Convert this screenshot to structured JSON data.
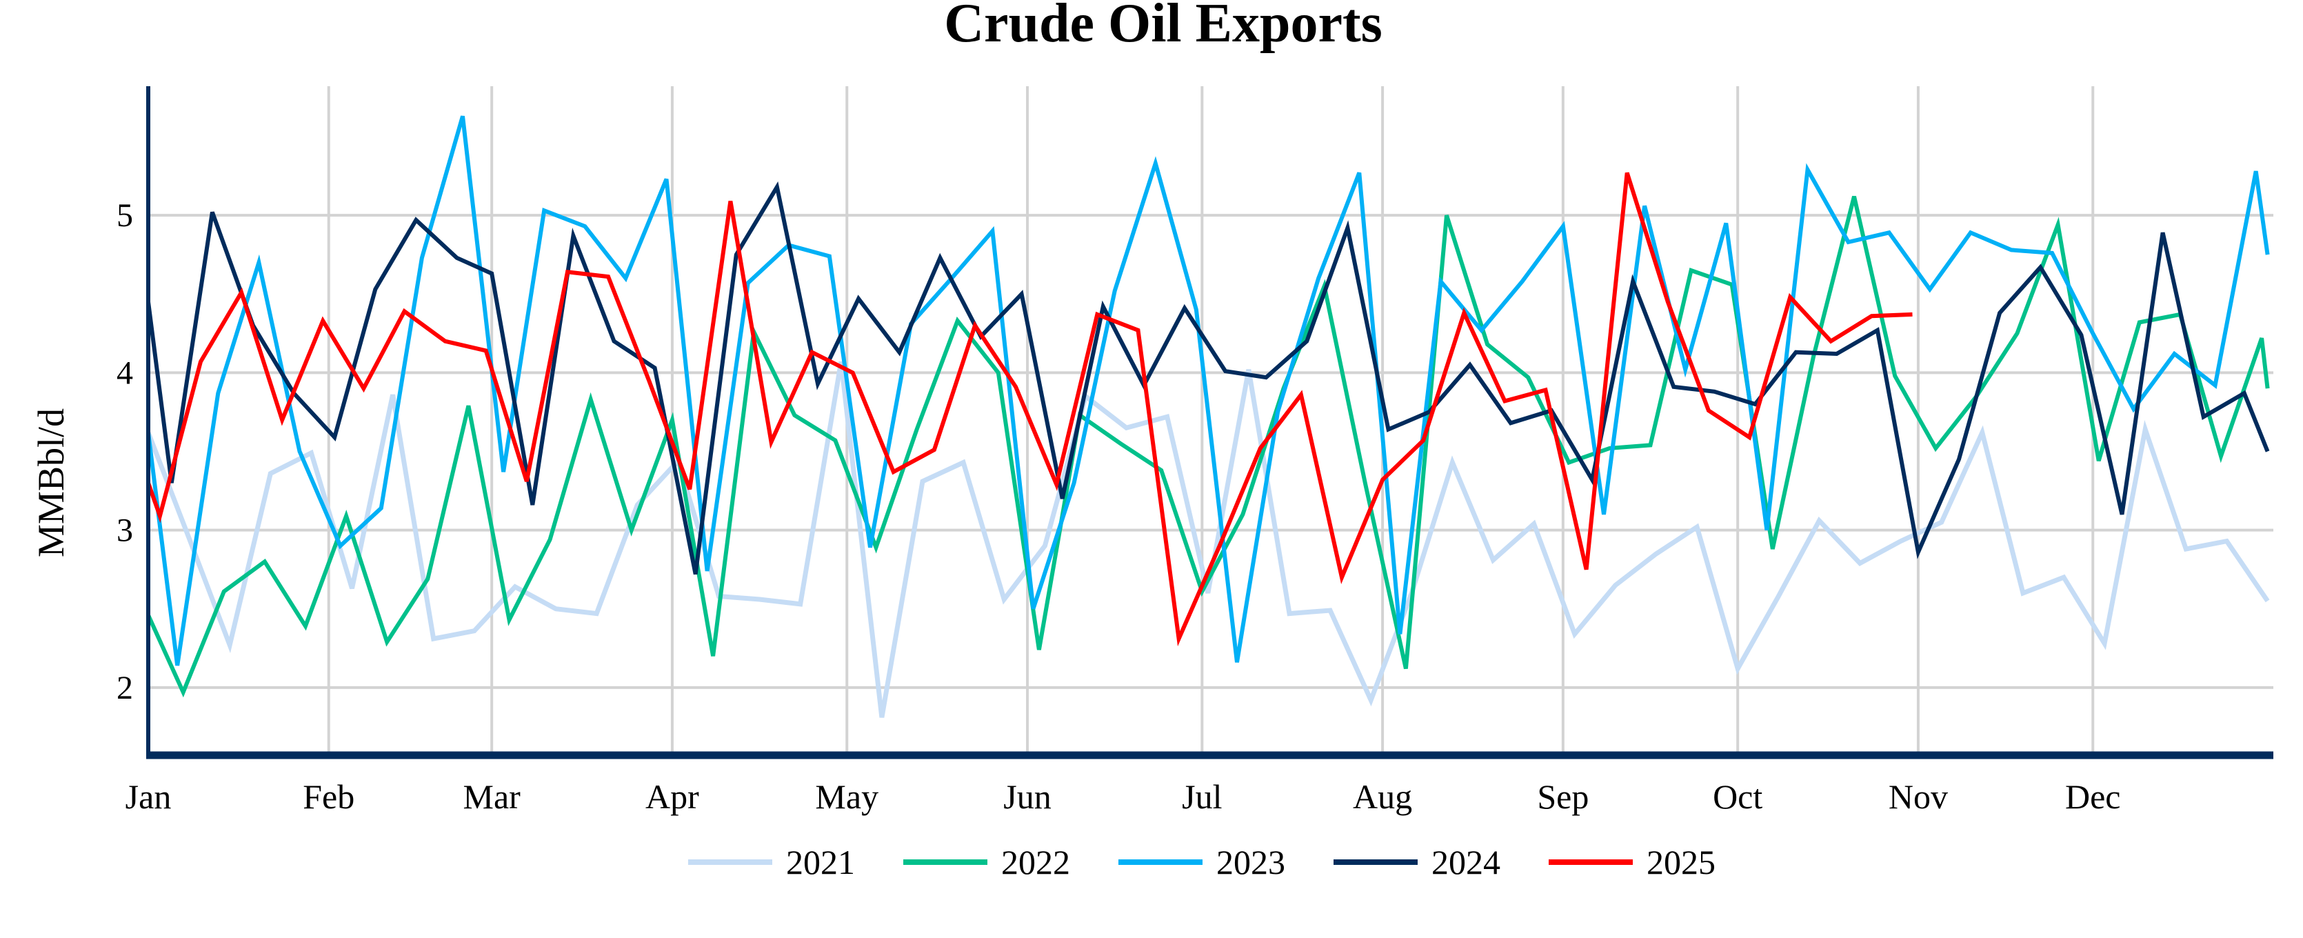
{
  "chart_data": {
    "type": "line",
    "title": "Crude Oil Exports",
    "xlabel": "",
    "ylabel": "MMBbl/d",
    "ylim": [
      1.57,
      5.82
    ],
    "yticks": [
      2,
      3,
      4,
      5
    ],
    "xticks": [
      "Jan",
      "Feb",
      "Mar",
      "Apr",
      "May",
      "Jun",
      "Jul",
      "Aug",
      "Sep",
      "Oct",
      "Nov",
      "Dec"
    ],
    "grid": true,
    "legend_position": "bottom",
    "series": [
      {
        "name": "2021",
        "color": "#c5dcf5",
        "points": [
          [
            "01-01",
            3.62
          ],
          [
            "01-08",
            2.95
          ],
          [
            "01-15",
            2.27
          ],
          [
            "01-22",
            3.36
          ],
          [
            "01-29",
            3.49
          ],
          [
            "02-05",
            2.63
          ],
          [
            "02-12",
            3.86
          ],
          [
            "02-19",
            2.31
          ],
          [
            "02-26",
            2.36
          ],
          [
            "03-05",
            2.64
          ],
          [
            "03-12",
            2.5
          ],
          [
            "03-19",
            2.47
          ],
          [
            "03-26",
            3.16
          ],
          [
            "04-02",
            3.44
          ],
          [
            "04-09",
            2.58
          ],
          [
            "04-16",
            2.56
          ],
          [
            "04-23",
            2.53
          ],
          [
            "04-30",
            4.07
          ],
          [
            "05-07",
            1.81
          ],
          [
            "05-14",
            3.31
          ],
          [
            "05-21",
            3.43
          ],
          [
            "05-28",
            2.56
          ],
          [
            "06-04",
            2.9
          ],
          [
            "06-11",
            3.85
          ],
          [
            "06-18",
            3.65
          ],
          [
            "06-25",
            3.72
          ],
          [
            "07-02",
            2.6
          ],
          [
            "07-09",
            4.02
          ],
          [
            "07-16",
            2.47
          ],
          [
            "07-23",
            2.49
          ],
          [
            "07-30",
            1.92
          ],
          [
            "08-06",
            2.6
          ],
          [
            "08-13",
            3.43
          ],
          [
            "08-20",
            2.81
          ],
          [
            "08-27",
            3.04
          ],
          [
            "09-03",
            2.34
          ],
          [
            "09-10",
            2.65
          ],
          [
            "09-17",
            2.85
          ],
          [
            "09-24",
            3.02
          ],
          [
            "10-01",
            2.12
          ],
          [
            "10-08",
            2.58
          ],
          [
            "10-15",
            3.06
          ],
          [
            "10-22",
            2.79
          ],
          [
            "10-29",
            2.93
          ],
          [
            "11-05",
            3.05
          ],
          [
            "11-12",
            3.62
          ],
          [
            "11-19",
            2.6
          ],
          [
            "11-26",
            2.7
          ],
          [
            "12-03",
            2.28
          ],
          [
            "12-10",
            3.64
          ],
          [
            "12-17",
            2.88
          ],
          [
            "12-24",
            2.93
          ],
          [
            "12-31",
            2.55
          ]
        ]
      },
      {
        "name": "2022",
        "color": "#00c08b",
        "points": [
          [
            "01-01",
            2.46
          ],
          [
            "01-07",
            1.97
          ],
          [
            "01-14",
            2.61
          ],
          [
            "01-21",
            2.8
          ],
          [
            "01-28",
            2.39
          ],
          [
            "02-04",
            3.09
          ],
          [
            "02-11",
            2.29
          ],
          [
            "02-18",
            2.69
          ],
          [
            "02-25",
            3.79
          ],
          [
            "03-04",
            2.43
          ],
          [
            "03-11",
            2.94
          ],
          [
            "03-18",
            3.83
          ],
          [
            "03-25",
            3.0
          ],
          [
            "04-01",
            3.7
          ],
          [
            "04-08",
            2.2
          ],
          [
            "04-15",
            4.26
          ],
          [
            "04-22",
            3.73
          ],
          [
            "04-29",
            3.57
          ],
          [
            "05-06",
            2.89
          ],
          [
            "05-13",
            3.64
          ],
          [
            "05-20",
            4.33
          ],
          [
            "05-27",
            4.0
          ],
          [
            "06-03",
            2.24
          ],
          [
            "06-10",
            3.73
          ],
          [
            "06-17",
            3.55
          ],
          [
            "06-24",
            3.38
          ],
          [
            "07-01",
            2.61
          ],
          [
            "07-08",
            3.1
          ],
          [
            "07-15",
            3.9
          ],
          [
            "07-22",
            4.55
          ],
          [
            "07-29",
            3.3
          ],
          [
            "08-05",
            2.12
          ],
          [
            "08-12",
            5.0
          ],
          [
            "08-19",
            4.18
          ],
          [
            "08-26",
            3.97
          ],
          [
            "09-02",
            3.43
          ],
          [
            "09-09",
            3.52
          ],
          [
            "09-16",
            3.54
          ],
          [
            "09-23",
            4.65
          ],
          [
            "09-30",
            4.56
          ],
          [
            "10-07",
            2.88
          ],
          [
            "10-14",
            4.1
          ],
          [
            "10-21",
            5.12
          ],
          [
            "10-28",
            3.98
          ],
          [
            "11-04",
            3.52
          ],
          [
            "11-11",
            3.85
          ],
          [
            "11-18",
            4.25
          ],
          [
            "11-25",
            4.94
          ],
          [
            "12-02",
            3.44
          ],
          [
            "12-09",
            4.32
          ],
          [
            "12-16",
            4.37
          ],
          [
            "12-23",
            3.47
          ],
          [
            "12-30",
            4.22
          ],
          [
            "12-31",
            3.9
          ]
        ]
      },
      {
        "name": "2023",
        "color": "#00b0f6",
        "points": [
          [
            "01-01",
            3.62
          ],
          [
            "01-06",
            2.14
          ],
          [
            "01-13",
            3.87
          ],
          [
            "01-20",
            4.7
          ],
          [
            "01-27",
            3.5
          ],
          [
            "02-03",
            2.9
          ],
          [
            "02-10",
            3.14
          ],
          [
            "02-17",
            4.73
          ],
          [
            "02-24",
            5.63
          ],
          [
            "03-03",
            3.37
          ],
          [
            "03-10",
            5.03
          ],
          [
            "03-17",
            4.93
          ],
          [
            "03-24",
            4.6
          ],
          [
            "03-31",
            5.23
          ],
          [
            "04-07",
            2.74
          ],
          [
            "04-14",
            4.57
          ],
          [
            "04-21",
            4.81
          ],
          [
            "04-28",
            4.74
          ],
          [
            "05-05",
            2.89
          ],
          [
            "05-12",
            4.31
          ],
          [
            "05-19",
            4.6
          ],
          [
            "05-26",
            4.9
          ],
          [
            "06-02",
            2.5
          ],
          [
            "06-09",
            3.3
          ],
          [
            "06-16",
            4.52
          ],
          [
            "06-23",
            5.33
          ],
          [
            "06-30",
            4.4
          ],
          [
            "07-07",
            2.16
          ],
          [
            "07-14",
            3.75
          ],
          [
            "07-21",
            4.6
          ],
          [
            "07-28",
            5.27
          ],
          [
            "08-04",
            2.34
          ],
          [
            "08-11",
            4.58
          ],
          [
            "08-18",
            4.27
          ],
          [
            "08-25",
            4.58
          ],
          [
            "09-01",
            4.93
          ],
          [
            "09-08",
            3.1
          ],
          [
            "09-15",
            5.06
          ],
          [
            "09-22",
            4.02
          ],
          [
            "09-29",
            4.95
          ],
          [
            "10-06",
            3.0
          ],
          [
            "10-13",
            5.29
          ],
          [
            "10-20",
            4.83
          ],
          [
            "10-27",
            4.89
          ],
          [
            "11-03",
            4.53
          ],
          [
            "11-10",
            4.89
          ],
          [
            "11-17",
            4.78
          ],
          [
            "11-24",
            4.76
          ],
          [
            "12-01",
            4.25
          ],
          [
            "12-08",
            3.77
          ],
          [
            "12-15",
            4.12
          ],
          [
            "12-22",
            3.92
          ],
          [
            "12-29",
            5.28
          ],
          [
            "12-31",
            4.75
          ]
        ]
      },
      {
        "name": "2024",
        "color": "#002b5c",
        "points": [
          [
            "01-01",
            4.45
          ],
          [
            "01-05",
            3.3
          ],
          [
            "01-12",
            5.02
          ],
          [
            "01-19",
            4.3
          ],
          [
            "01-26",
            3.87
          ],
          [
            "02-02",
            3.59
          ],
          [
            "02-09",
            4.53
          ],
          [
            "02-16",
            4.97
          ],
          [
            "02-23",
            4.73
          ],
          [
            "03-01",
            4.63
          ],
          [
            "03-08",
            3.16
          ],
          [
            "03-15",
            4.87
          ],
          [
            "03-22",
            4.2
          ],
          [
            "03-29",
            4.03
          ],
          [
            "04-05",
            2.72
          ],
          [
            "04-12",
            4.75
          ],
          [
            "04-19",
            5.18
          ],
          [
            "04-26",
            3.93
          ],
          [
            "05-03",
            4.47
          ],
          [
            "05-10",
            4.13
          ],
          [
            "05-17",
            4.73
          ],
          [
            "05-24",
            4.23
          ],
          [
            "05-31",
            4.5
          ],
          [
            "06-07",
            3.2
          ],
          [
            "06-14",
            4.42
          ],
          [
            "06-21",
            3.92
          ],
          [
            "06-28",
            4.41
          ],
          [
            "07-05",
            4.01
          ],
          [
            "07-12",
            3.97
          ],
          [
            "07-19",
            4.2
          ],
          [
            "07-26",
            4.92
          ],
          [
            "08-02",
            3.64
          ],
          [
            "08-09",
            3.75
          ],
          [
            "08-16",
            4.05
          ],
          [
            "08-23",
            3.68
          ],
          [
            "08-30",
            3.76
          ],
          [
            "09-06",
            3.32
          ],
          [
            "09-13",
            4.58
          ],
          [
            "09-20",
            3.91
          ],
          [
            "09-27",
            3.88
          ],
          [
            "10-04",
            3.8
          ],
          [
            "10-11",
            4.13
          ],
          [
            "10-18",
            4.12
          ],
          [
            "10-25",
            4.27
          ],
          [
            "11-01",
            2.86
          ],
          [
            "11-08",
            3.45
          ],
          [
            "11-15",
            4.38
          ],
          [
            "11-22",
            4.67
          ],
          [
            "11-29",
            4.24
          ],
          [
            "12-06",
            3.1
          ],
          [
            "12-13",
            4.89
          ],
          [
            "12-20",
            3.72
          ],
          [
            "12-27",
            3.87
          ],
          [
            "12-31",
            3.5
          ]
        ]
      },
      {
        "name": "2025",
        "color": "#ff0000",
        "points": [
          [
            "01-01",
            3.3
          ],
          [
            "01-03",
            3.09
          ],
          [
            "01-10",
            4.07
          ],
          [
            "01-17",
            4.51
          ],
          [
            "01-24",
            3.7
          ],
          [
            "01-31",
            4.33
          ],
          [
            "02-07",
            3.9
          ],
          [
            "02-14",
            4.39
          ],
          [
            "02-21",
            4.2
          ],
          [
            "02-28",
            4.14
          ],
          [
            "03-07",
            3.31
          ],
          [
            "03-14",
            4.64
          ],
          [
            "03-21",
            4.61
          ],
          [
            "03-28",
            3.95
          ],
          [
            "04-04",
            3.26
          ],
          [
            "04-11",
            5.09
          ],
          [
            "04-18",
            3.56
          ],
          [
            "04-25",
            4.13
          ],
          [
            "05-02",
            4.0
          ],
          [
            "05-09",
            3.37
          ],
          [
            "05-16",
            3.51
          ],
          [
            "05-23",
            4.3
          ],
          [
            "05-30",
            3.91
          ],
          [
            "06-06",
            3.29
          ],
          [
            "06-13",
            4.37
          ],
          [
            "06-20",
            4.27
          ],
          [
            "06-27",
            2.31
          ],
          [
            "07-04",
            2.9
          ],
          [
            "07-11",
            3.52
          ],
          [
            "07-18",
            3.86
          ],
          [
            "07-25",
            2.7
          ],
          [
            "08-01",
            3.32
          ],
          [
            "08-08",
            3.57
          ],
          [
            "08-15",
            4.38
          ],
          [
            "08-22",
            3.82
          ],
          [
            "08-29",
            3.89
          ],
          [
            "09-05",
            2.75
          ],
          [
            "09-12",
            5.27
          ],
          [
            "09-19",
            4.45
          ],
          [
            "09-26",
            3.76
          ],
          [
            "10-03",
            3.59
          ],
          [
            "10-10",
            4.48
          ],
          [
            "10-17",
            4.2
          ],
          [
            "10-24",
            4.36
          ],
          [
            "10-31",
            4.37
          ]
        ]
      }
    ]
  }
}
